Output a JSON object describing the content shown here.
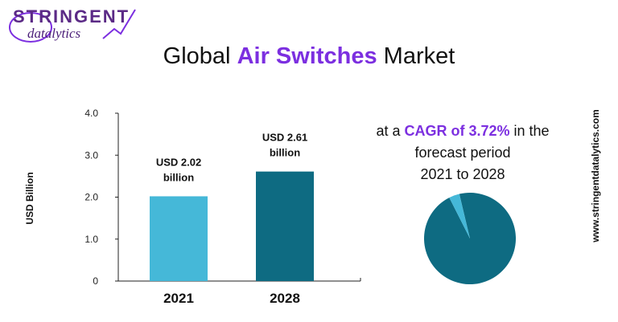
{
  "brand": {
    "top": "STRINGENT",
    "bottom": "datalytics"
  },
  "title": {
    "pre": "Global ",
    "accent": "Air Switches",
    "post": " Market"
  },
  "colors": {
    "bar_2021": "#45b8d8",
    "bar_2028": "#0e6b82",
    "accent": "#7c2fe0",
    "pie_main": "#0e6b82",
    "pie_slice": "#45b8d8"
  },
  "cagr": {
    "pre": "at a ",
    "accent": "CAGR of 3.72%",
    "post": " in the",
    "line2": "forecast period",
    "line3": "2021 to 2028"
  },
  "website": "www.stringentdatalytics.com",
  "chart_data": {
    "type": "bar",
    "ylabel": "USD  Billion",
    "categories": [
      "2021",
      "2028"
    ],
    "values": [
      2.02,
      2.61
    ],
    "data_labels": [
      [
        "USD 2.02",
        "billion"
      ],
      [
        "USD 2.61",
        "billion"
      ]
    ],
    "yticks": [
      "0",
      "1.0",
      "2.0",
      "3.0",
      "4.0"
    ],
    "ylim": [
      0,
      4.0
    ]
  },
  "pie_data": {
    "type": "pie",
    "slices": [
      96.28,
      3.72
    ]
  }
}
